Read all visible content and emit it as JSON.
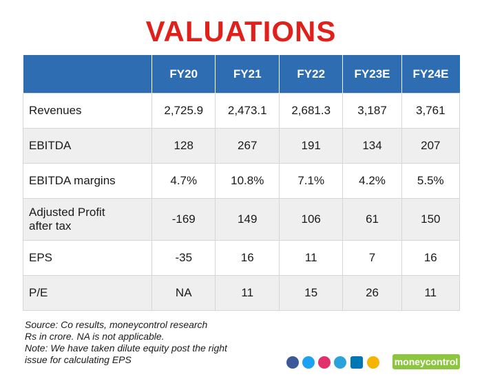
{
  "title": "VALUATIONS",
  "table": {
    "header": [
      "FY20",
      "FY21",
      "FY22",
      "FY23E",
      "FY24E"
    ],
    "rows": [
      [
        "Revenues",
        "2,725.9",
        "2,473.1",
        "2,681.3",
        "3,187",
        "3,761"
      ],
      [
        "EBITDA",
        "128",
        "267",
        "191",
        "134",
        "207"
      ],
      [
        "EBITDA margins",
        "4.7%",
        "10.8%",
        "7.1%",
        "4.2%",
        "5.5%"
      ],
      [
        "Adjusted Profit after tax",
        "-169",
        "149",
        "106",
        "61",
        "150"
      ],
      [
        "EPS",
        "-35",
        "16",
        "11",
        "7",
        "16"
      ],
      [
        "P/E",
        "NA",
        "11",
        "15",
        "26",
        "11"
      ]
    ]
  },
  "notes": [
    "Source: Co results, moneycontrol research",
    "Rs in crore. NA is not applicable.",
    "Note: We have taken dilute equity post the right issue for calculating EPS"
  ],
  "brand": "moneycontrol"
}
